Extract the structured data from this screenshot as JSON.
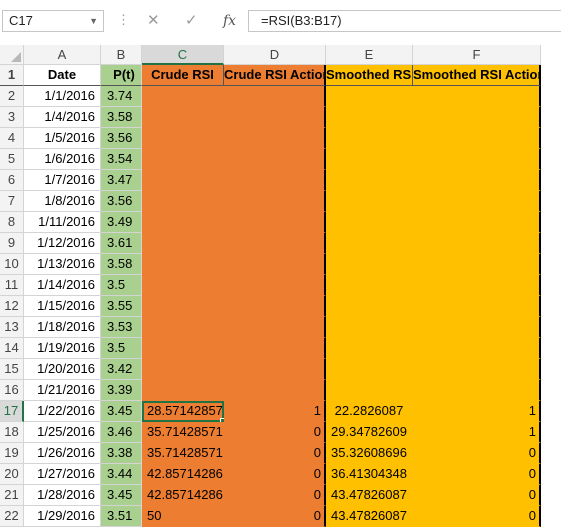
{
  "formula_bar": {
    "name_box": "C17",
    "formula": "=RSI(B3:B17)",
    "cancel_icon": "✕",
    "enter_icon": "✓",
    "fx_label": "fx"
  },
  "columns": [
    "A",
    "B",
    "C",
    "D",
    "E",
    "F"
  ],
  "header_row": {
    "row_num": "1",
    "date": "Date",
    "price": "P(t)",
    "crude_rsi": "Crude RSI",
    "crude_rsi_action": "Crude RSI Action",
    "smoothed_rsi": "Smoothed RSI",
    "smoothed_rsi_action": "Smoothed RSI Action"
  },
  "rows": [
    {
      "n": "2",
      "date": "1/1/2016",
      "p": "3.74",
      "c": "",
      "d": "",
      "e": "",
      "f": ""
    },
    {
      "n": "3",
      "date": "1/4/2016",
      "p": "3.58",
      "c": "",
      "d": "",
      "e": "",
      "f": ""
    },
    {
      "n": "4",
      "date": "1/5/2016",
      "p": "3.56",
      "c": "",
      "d": "",
      "e": "",
      "f": ""
    },
    {
      "n": "5",
      "date": "1/6/2016",
      "p": "3.54",
      "c": "",
      "d": "",
      "e": "",
      "f": ""
    },
    {
      "n": "6",
      "date": "1/7/2016",
      "p": "3.47",
      "c": "",
      "d": "",
      "e": "",
      "f": ""
    },
    {
      "n": "7",
      "date": "1/8/2016",
      "p": "3.56",
      "c": "",
      "d": "",
      "e": "",
      "f": ""
    },
    {
      "n": "8",
      "date": "1/11/2016",
      "p": "3.49",
      "c": "",
      "d": "",
      "e": "",
      "f": ""
    },
    {
      "n": "9",
      "date": "1/12/2016",
      "p": "3.61",
      "c": "",
      "d": "",
      "e": "",
      "f": ""
    },
    {
      "n": "10",
      "date": "1/13/2016",
      "p": "3.58",
      "c": "",
      "d": "",
      "e": "",
      "f": ""
    },
    {
      "n": "11",
      "date": "1/14/2016",
      "p": "3.5",
      "c": "",
      "d": "",
      "e": "",
      "f": ""
    },
    {
      "n": "12",
      "date": "1/15/2016",
      "p": "3.55",
      "c": "",
      "d": "",
      "e": "",
      "f": ""
    },
    {
      "n": "13",
      "date": "1/18/2016",
      "p": "3.53",
      "c": "",
      "d": "",
      "e": "",
      "f": ""
    },
    {
      "n": "14",
      "date": "1/19/2016",
      "p": "3.5",
      "c": "",
      "d": "",
      "e": "",
      "f": ""
    },
    {
      "n": "15",
      "date": "1/20/2016",
      "p": "3.42",
      "c": "",
      "d": "",
      "e": "",
      "f": ""
    },
    {
      "n": "16",
      "date": "1/21/2016",
      "p": "3.39",
      "c": "",
      "d": "",
      "e": "",
      "f": ""
    },
    {
      "n": "17",
      "date": "1/22/2016",
      "p": "3.45",
      "c": "28.57142857",
      "d": "1",
      "e": "22.2826087",
      "f": "1"
    },
    {
      "n": "18",
      "date": "1/25/2016",
      "p": "3.46",
      "c": "35.71428571",
      "d": "0",
      "e": "29.34782609",
      "f": "1"
    },
    {
      "n": "19",
      "date": "1/26/2016",
      "p": "3.38",
      "c": "35.71428571",
      "d": "0",
      "e": "35.32608696",
      "f": "0"
    },
    {
      "n": "20",
      "date": "1/27/2016",
      "p": "3.44",
      "c": "42.85714286",
      "d": "0",
      "e": "36.41304348",
      "f": "0"
    },
    {
      "n": "21",
      "date": "1/28/2016",
      "p": "3.45",
      "c": "42.85714286",
      "d": "0",
      "e": "43.47826087",
      "f": "0"
    },
    {
      "n": "22",
      "date": "1/29/2016",
      "p": "3.51",
      "c": "50",
      "d": "0",
      "e": "43.47826087",
      "f": "0"
    }
  ],
  "colors": {
    "price_fill": "#a9d08e",
    "crude_fill": "#ed7d31",
    "smoothed_fill": "#ffc000",
    "selection": "#217346"
  }
}
